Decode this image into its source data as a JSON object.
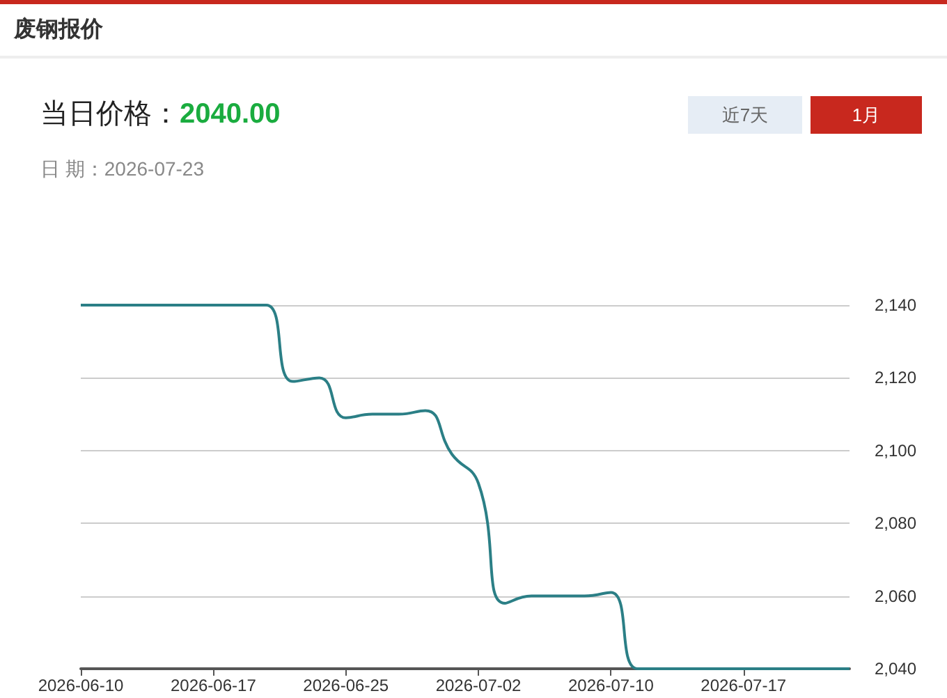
{
  "chart_data": {
    "type": "line",
    "title": "废钢报价",
    "annotations": [
      "当日价格：",
      "2040.00",
      "日 期：2026-07-23",
      "近7天",
      "1月"
    ],
    "categories": [
      "2026-06-10",
      null,
      null,
      null,
      null,
      "2026-06-17",
      null,
      null,
      null,
      null,
      "2026-06-25",
      null,
      null,
      null,
      null,
      "2026-07-02",
      null,
      null,
      null,
      null,
      "2026-07-10",
      null,
      null,
      null,
      null,
      "2026-07-17",
      null,
      null,
      null,
      null
    ],
    "series": [
      {
        "color": "#2b7f86",
        "values": [
          2140,
          2140,
          2140,
          2140,
          2140,
          2140,
          2140,
          2140,
          2119,
          2120,
          2109,
          2110,
          2110,
          2111,
          2099,
          2091,
          2058,
          2060,
          2060,
          2060,
          2061,
          2040,
          2040,
          2040,
          2040,
          2040,
          2040,
          2040,
          2040,
          2040
        ]
      }
    ],
    "ylim": [
      2040,
      2140
    ],
    "yticks": [
      {
        "value": 2040,
        "label": "2,040"
      },
      {
        "value": 2060,
        "label": "2,060"
      },
      {
        "value": 2080,
        "label": "2,080"
      },
      {
        "value": 2100,
        "label": "2,100"
      },
      {
        "value": 2120,
        "label": "2,120"
      },
      {
        "value": 2140,
        "label": "2,140"
      }
    ],
    "grid": "y",
    "marker": "none",
    "line_style": "solid"
  }
}
